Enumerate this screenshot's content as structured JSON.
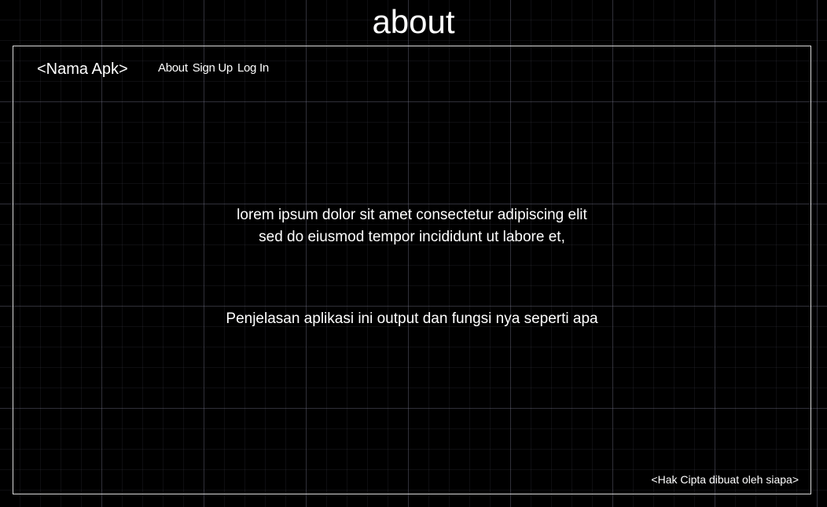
{
  "page": {
    "title": "about"
  },
  "header": {
    "brand": "<Nama Apk>",
    "nav": [
      "About",
      "Sign Up",
      "Log In"
    ]
  },
  "main": {
    "lorem_lines": [
      "lorem ipsum dolor sit amet consectetur adipiscing elit",
      "sed do eiusmod tempor incididunt ut labore et,"
    ],
    "description": "Penjelasan aplikasi ini output dan fungsi nya seperti apa"
  },
  "footer": {
    "copyright": "<Hak Cipta dibuat oleh siapa>"
  },
  "colors": {
    "background": "#000000",
    "grid": "#787890",
    "frame": "#d9d9d9",
    "text": "#ffffff"
  }
}
